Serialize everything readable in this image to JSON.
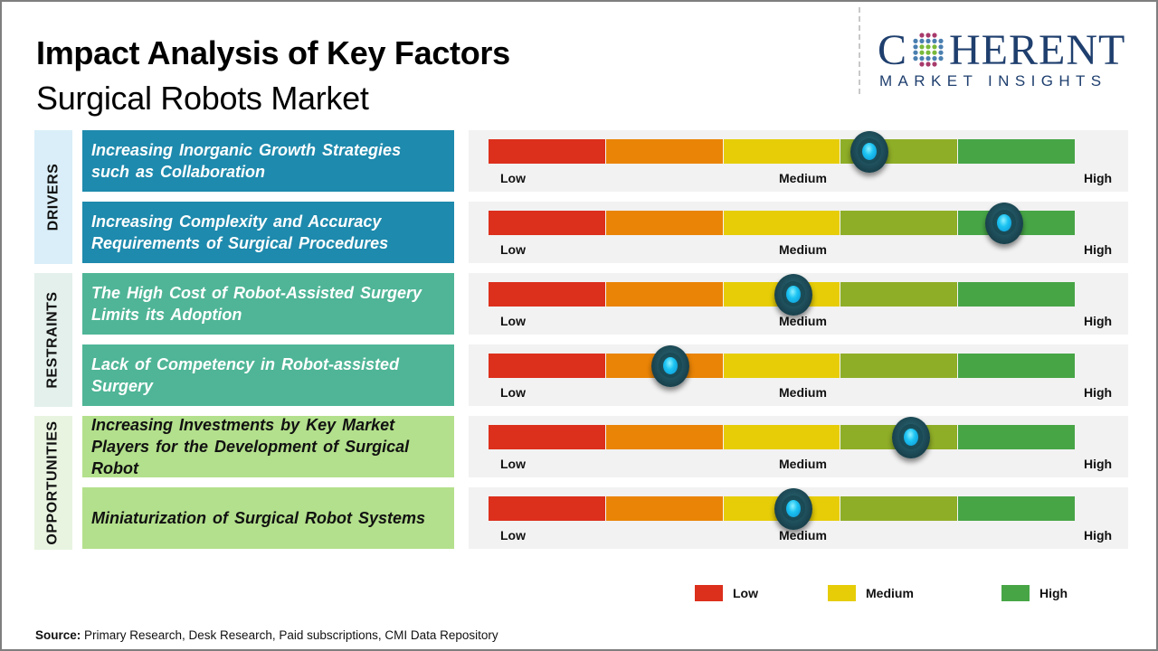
{
  "header": {
    "title": "Impact Analysis of Key Factors",
    "subtitle": "Surgical Robots Market"
  },
  "logo": {
    "main_prefix": "C",
    "main_suffix": "HERENT",
    "sub": "MARKET INSIGHTS",
    "icon": "globe-dots-icon"
  },
  "categories": [
    {
      "label": "DRIVERS",
      "color": "#d9eef8"
    },
    {
      "label": "RESTRAINTS",
      "color": "#e3f0ec"
    },
    {
      "label": "OPPORTUNITIES",
      "color": "#e8f4e0"
    }
  ],
  "scale_labels": {
    "low": "Low",
    "medium": "Medium",
    "high": "High"
  },
  "segment_colors": [
    "#dc2f1c",
    "#ea8406",
    "#e6cd08",
    "#8fae27",
    "#47a546"
  ],
  "chart_data": {
    "type": "table",
    "title": "Impact Analysis of Key Factors - Surgical Robots Market",
    "scale": [
      "Low",
      "Medium",
      "High"
    ],
    "value_range": [
      0,
      1
    ],
    "rows": [
      {
        "category": "Drivers",
        "factor": "Increasing Inorganic Growth Strategies such as Collaboration",
        "impact": 0.65
      },
      {
        "category": "Drivers",
        "factor": "Increasing Complexity and Accuracy Requirements of Surgical Procedures",
        "impact": 0.88
      },
      {
        "category": "Restraints",
        "factor": "The High Cost of Robot-Assisted Surgery Limits its Adoption",
        "impact": 0.52
      },
      {
        "category": "Restraints",
        "factor": "Lack of Competency in Robot-assisted Surgery",
        "impact": 0.31
      },
      {
        "category": "Opportunities",
        "factor": "Increasing Investments by Key Market Players for the Development of Surgical Robot",
        "impact": 0.72
      },
      {
        "category": "Opportunities",
        "factor": "Miniaturization  of Surgical Robot Systems",
        "impact": 0.52
      }
    ],
    "legend": [
      {
        "label": "Low",
        "color": "#dc2f1c"
      },
      {
        "label": "Medium",
        "color": "#e6cd08"
      },
      {
        "label": "High",
        "color": "#47a546"
      }
    ],
    "legend_position": "bottom-right"
  },
  "source": {
    "label": "Source:",
    "text": " Primary Research, Desk Research, Paid subscriptions, CMI Data Repository"
  }
}
